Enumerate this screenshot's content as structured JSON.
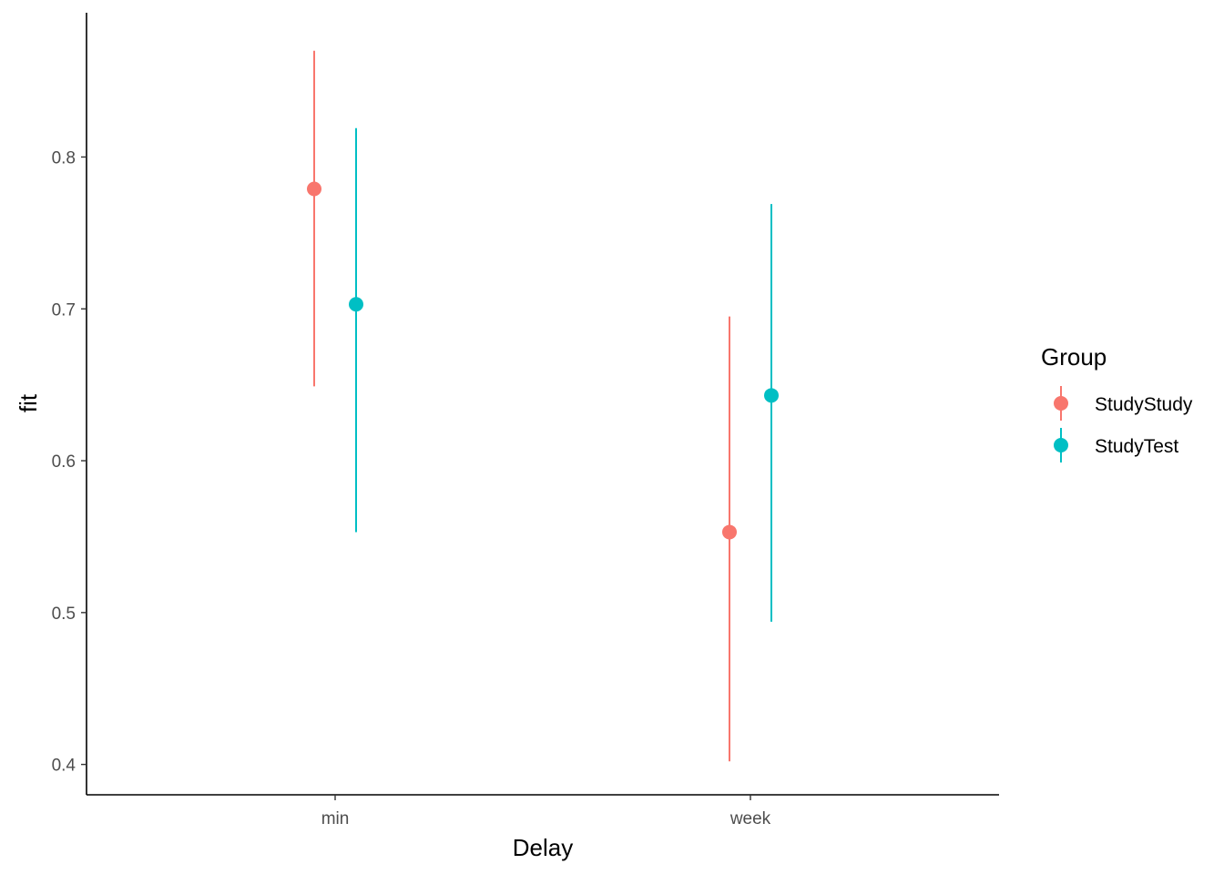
{
  "chart_data": {
    "type": "scatter",
    "title": "",
    "xlabel": "Delay",
    "ylabel": "fit",
    "categories": [
      "min",
      "week"
    ],
    "ylim": [
      0.38,
      0.895
    ],
    "yticks": [
      "0.4",
      "0.5",
      "0.6",
      "0.7",
      "0.8"
    ],
    "grid": false,
    "legend": {
      "title": "Group",
      "position": "right"
    },
    "series": [
      {
        "name": "StudyStudy",
        "color": "#F8766D",
        "points": [
          {
            "category": "min",
            "fit": 0.779,
            "lower": 0.649,
            "upper": 0.87
          },
          {
            "category": "week",
            "fit": 0.553,
            "lower": 0.402,
            "upper": 0.695
          }
        ]
      },
      {
        "name": "StudyTest",
        "color": "#00BFC4",
        "points": [
          {
            "category": "min",
            "fit": 0.703,
            "lower": 0.553,
            "upper": 0.819
          },
          {
            "category": "week",
            "fit": 0.643,
            "lower": 0.494,
            "upper": 0.769
          }
        ]
      }
    ]
  }
}
